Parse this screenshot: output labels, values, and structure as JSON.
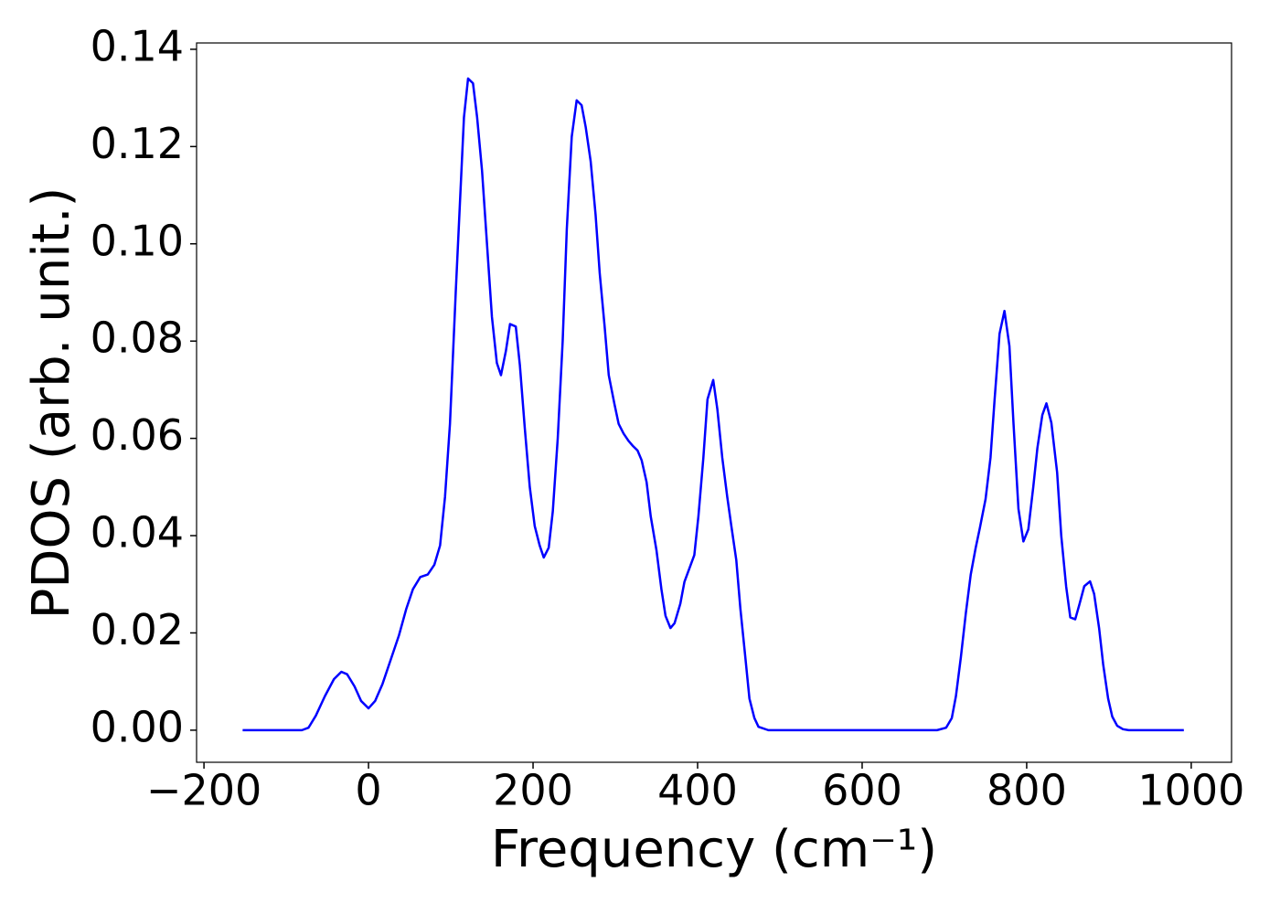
{
  "chart_data": {
    "type": "line",
    "x_label": "Frequency (cm⁻¹)",
    "y_label": "PDOS (arb. unit.)",
    "xlim": [
      -209,
      1049
    ],
    "ylim": [
      -0.0066,
      0.1413
    ],
    "xticks": [
      {
        "value": -200,
        "label": "−200"
      },
      0,
      200,
      400,
      600,
      800,
      1000
    ],
    "yticks": [
      {
        "value": 0,
        "label": "0.00"
      },
      {
        "value": 0.02,
        "label": "0.02"
      },
      {
        "value": 0.04,
        "label": "0.04"
      },
      {
        "value": 0.06,
        "label": "0.06"
      },
      {
        "value": 0.08,
        "label": "0.08"
      },
      {
        "value": 0.1,
        "label": "0.10"
      },
      {
        "value": 0.12,
        "label": "0.12"
      },
      {
        "value": 0.14,
        "label": "0.14"
      }
    ],
    "grid": false,
    "x": [
      -153,
      -81,
      -73,
      -64,
      -53,
      -42,
      -33,
      -26,
      -17,
      -9,
      0,
      8,
      17,
      27,
      37,
      46,
      54,
      63,
      72,
      80,
      87,
      93,
      99,
      106,
      111,
      116,
      121,
      127,
      132,
      138,
      144,
      150,
      156,
      161,
      167,
      172,
      179,
      184,
      190,
      196,
      202,
      208,
      213,
      219,
      224,
      230,
      236,
      241,
      247,
      253,
      259,
      264,
      270,
      276,
      281,
      287,
      292,
      299,
      304,
      310,
      316,
      321,
      327,
      332,
      338,
      343,
      350,
      356,
      361,
      367,
      372,
      379,
      384,
      396,
      401,
      407,
      412,
      419,
      424,
      430,
      436,
      441,
      447,
      452,
      458,
      463,
      469,
      474,
      486,
      691,
      702,
      709,
      714,
      720,
      726,
      732,
      738,
      743,
      750,
      756,
      761,
      767,
      773,
      779,
      784,
      790,
      796,
      802,
      808,
      813,
      819,
      824,
      830,
      837,
      842,
      848,
      853,
      859,
      864,
      870,
      877,
      882,
      888,
      893,
      899,
      904,
      910,
      917,
      924,
      991
    ],
    "series": [
      {
        "name": "PDOS",
        "color": "#0000ff",
        "values": [
          0,
          0,
          0.0005,
          0.003,
          0.007,
          0.0105,
          0.012,
          0.0115,
          0.009,
          0.006,
          0.0045,
          0.006,
          0.0095,
          0.0145,
          0.0195,
          0.025,
          0.029,
          0.0315,
          0.032,
          0.034,
          0.038,
          0.048,
          0.063,
          0.09,
          0.108,
          0.126,
          0.134,
          0.133,
          0.126,
          0.115,
          0.1,
          0.085,
          0.0755,
          0.073,
          0.078,
          0.0835,
          0.083,
          0.075,
          0.062,
          0.05,
          0.042,
          0.038,
          0.0355,
          0.0375,
          0.045,
          0.06,
          0.08,
          0.103,
          0.122,
          0.1295,
          0.1285,
          0.124,
          0.117,
          0.106,
          0.094,
          0.083,
          0.073,
          0.067,
          0.063,
          0.061,
          0.0595,
          0.0585,
          0.0575,
          0.0555,
          0.051,
          0.044,
          0.037,
          0.029,
          0.0235,
          0.021,
          0.022,
          0.026,
          0.0305,
          0.036,
          0.044,
          0.056,
          0.068,
          0.072,
          0.066,
          0.056,
          0.048,
          0.042,
          0.035,
          0.025,
          0.015,
          0.0065,
          0.0025,
          0.0007,
          0,
          0,
          0.0005,
          0.0025,
          0.007,
          0.015,
          0.024,
          0.032,
          0.0375,
          0.0415,
          0.0475,
          0.056,
          0.068,
          0.0815,
          0.0862,
          0.079,
          0.063,
          0.0455,
          0.0388,
          0.0413,
          0.05,
          0.058,
          0.0648,
          0.0672,
          0.0632,
          0.053,
          0.04,
          0.0295,
          0.0232,
          0.0228,
          0.0258,
          0.0296,
          0.0306,
          0.028,
          0.021,
          0.0135,
          0.0065,
          0.0028,
          0.0009,
          0.0002,
          0,
          0
        ]
      }
    ]
  }
}
